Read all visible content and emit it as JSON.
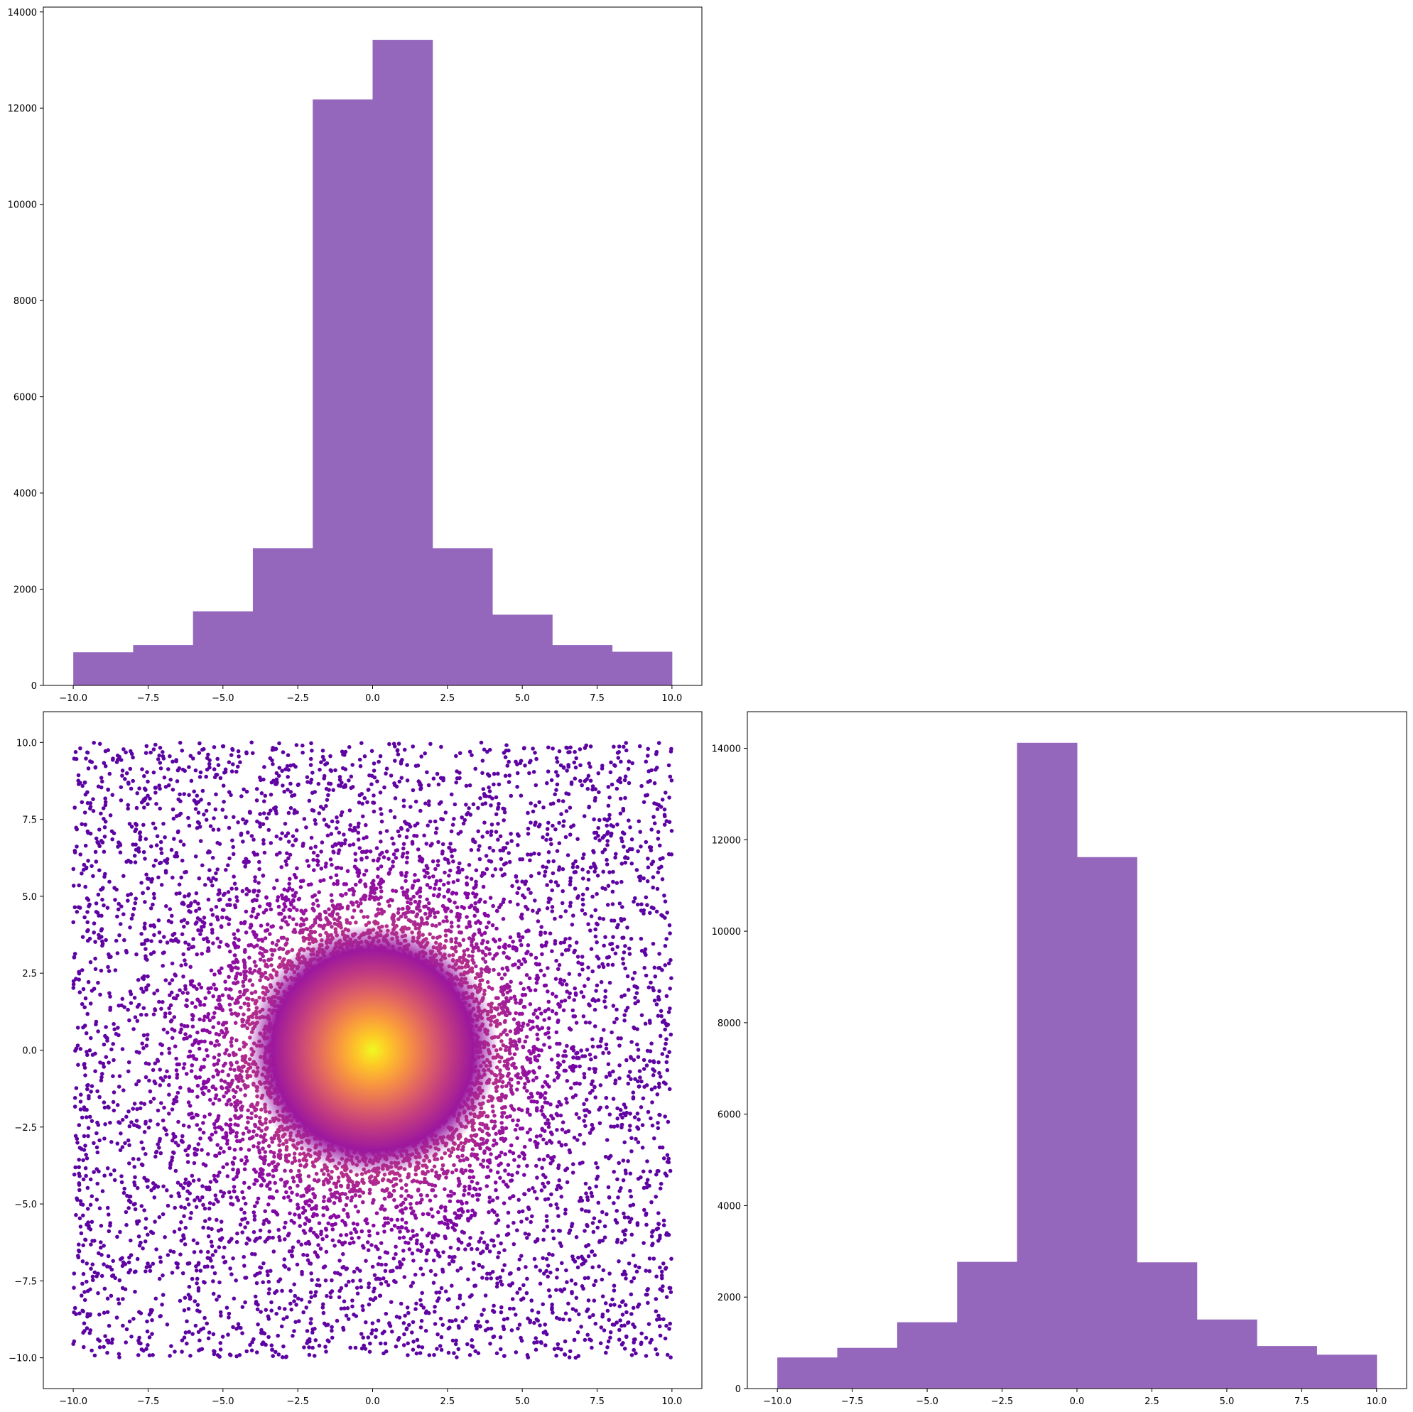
{
  "colors": {
    "hist_bar": "#9467bd",
    "axis_frame": "#000000",
    "background": "#ffffff",
    "colormap": "plasma"
  },
  "chart_data": [
    {
      "id": "top-histogram",
      "type": "bar",
      "subtype": "histogram",
      "bin_edges": [
        -10,
        -8,
        -6,
        -4,
        -2,
        0,
        2,
        4,
        6,
        8,
        10
      ],
      "values": [
        690,
        840,
        1540,
        2850,
        12180,
        13420,
        2850,
        1470,
        840,
        700
      ],
      "xlim": [
        -11,
        11
      ],
      "ylim": [
        0,
        14100
      ],
      "xticks": [
        -10,
        -7.5,
        -5,
        -2.5,
        0,
        2.5,
        5,
        7.5,
        10
      ],
      "xtick_labels": [
        "−10.0",
        "−7.5",
        "−5.0",
        "−2.5",
        "0.0",
        "2.5",
        "5.0",
        "7.5",
        "10.0"
      ],
      "yticks": [
        0,
        2000,
        4000,
        6000,
        8000,
        10000,
        12000,
        14000
      ],
      "ytick_labels": [
        "0",
        "2000",
        "4000",
        "6000",
        "8000",
        "10000",
        "12000",
        "14000"
      ],
      "title": "",
      "xlabel": "",
      "ylabel": "",
      "grid": false
    },
    {
      "id": "scatter",
      "type": "scatter",
      "color_by": "density",
      "colormap": "plasma",
      "distribution": "dense Gaussian core centred at (0, 0) over a uniform background on [-10, 10] x [-10, 10]",
      "center": [
        0,
        0
      ],
      "xlim": [
        -11,
        11
      ],
      "ylim": [
        -11,
        11
      ],
      "xticks": [
        -10,
        -7.5,
        -5,
        -2.5,
        0,
        2.5,
        5,
        7.5,
        10
      ],
      "xtick_labels": [
        "−10.0",
        "−7.5",
        "−5.0",
        "−2.5",
        "0.0",
        "2.5",
        "5.0",
        "7.5",
        "10.0"
      ],
      "yticks": [
        10,
        7.5,
        5,
        2.5,
        0,
        -2.5,
        -5,
        -7.5,
        -10
      ],
      "ytick_labels": [
        "10.0",
        "7.5",
        "5.0",
        "2.5",
        "0.0",
        "−2.5",
        "−5.0",
        "−7.5",
        "−10.0"
      ],
      "title": "",
      "xlabel": "",
      "ylabel": "",
      "grid": false
    },
    {
      "id": "right-histogram",
      "type": "bar",
      "subtype": "histogram",
      "bin_edges": [
        -10,
        -8,
        -6,
        -4,
        -2,
        0,
        2,
        4,
        6,
        8,
        10
      ],
      "values": [
        680,
        890,
        1450,
        2770,
        14120,
        11620,
        2760,
        1510,
        930,
        740
      ],
      "xlim": [
        -11,
        11
      ],
      "ylim": [
        0,
        14800
      ],
      "xticks": [
        -10,
        -7.5,
        -5,
        -2.5,
        0,
        2.5,
        5,
        7.5,
        10
      ],
      "xtick_labels": [
        "−10.0",
        "−7.5",
        "−5.0",
        "−2.5",
        "0.0",
        "2.5",
        "5.0",
        "7.5",
        "10.0"
      ],
      "yticks": [
        0,
        2000,
        4000,
        6000,
        8000,
        10000,
        12000,
        14000
      ],
      "ytick_labels": [
        "0",
        "2000",
        "4000",
        "6000",
        "8000",
        "10000",
        "12000",
        "14000"
      ],
      "title": "",
      "xlabel": "",
      "ylabel": "",
      "grid": false
    }
  ]
}
